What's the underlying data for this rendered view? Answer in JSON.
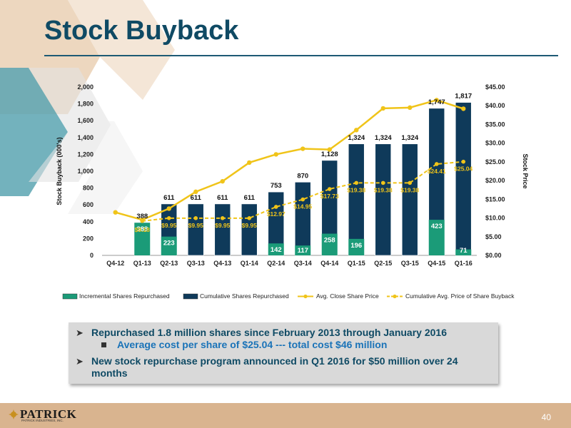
{
  "slide": {
    "title": "Stock Buyback",
    "page_number": "40"
  },
  "bullets": {
    "b1": "Repurchased 1.8 million shares since February 2013 through January 2016",
    "b1_sub": "Average cost per share of $25.04 --- total cost $46 million",
    "b2": "New stock repurchase program announced in Q1 2016 for $50 million over 24 months"
  },
  "footer": {
    "logo_text": "PATRICK",
    "logo_tagline": "PATRICK INDUSTRIES, INC."
  },
  "colors": {
    "title": "#0f4a64",
    "incremental_bar": "#1b9b78",
    "cumulative_bar": "#0f3a5a",
    "price_line": "#f0c419",
    "footer": "#d9b48f"
  },
  "chart_data": {
    "type": "bar",
    "categories": [
      "Q4-12",
      "Q1-13",
      "Q2-13",
      "Q3-13",
      "Q4-13",
      "Q1-14",
      "Q2-14",
      "Q3-14",
      "Q4-14",
      "Q1-15",
      "Q2-15",
      "Q3-15",
      "Q4-15",
      "Q1-16"
    ],
    "series": [
      {
        "name": "Incremental Shares Repurchased",
        "axis": "left",
        "values": [
          null,
          388,
          223,
          null,
          null,
          null,
          142,
          117,
          258,
          196,
          null,
          null,
          423,
          71
        ],
        "labels": [
          "",
          "388",
          "223",
          "",
          "",
          "",
          "142",
          "117",
          "258",
          "196",
          "",
          "",
          "423",
          "71"
        ]
      },
      {
        "name": "Cumulative Shares Repurchased",
        "axis": "left",
        "values": [
          null,
          388,
          611,
          611,
          611,
          611,
          753,
          870,
          1128,
          1324,
          1324,
          1324,
          1747,
          1817
        ],
        "labels": [
          "",
          "388",
          "611",
          "611",
          "611",
          "611",
          "753",
          "870",
          "1,128",
          "1,324",
          "1,324",
          "1,324",
          "1,747",
          "1,817"
        ]
      },
      {
        "name": "Avg. Close Share Price",
        "axis": "right",
        "type": "line",
        "values": [
          11.5,
          9.5,
          12.5,
          17.0,
          19.8,
          24.8,
          27.0,
          28.5,
          28.3,
          33.5,
          39.3,
          39.5,
          41.5,
          39.2
        ]
      },
      {
        "name": "Cumulative Avg. Price of Share Buyback",
        "axis": "right",
        "type": "line",
        "dashed": true,
        "values": [
          null,
          9.18,
          9.95,
          9.95,
          9.95,
          9.95,
          12.97,
          14.95,
          17.73,
          19.38,
          19.38,
          19.38,
          24.41,
          25.04
        ],
        "labels": [
          "",
          "$9.18",
          "$9.95",
          "$9.95",
          "$9.95",
          "$9.95",
          "$12.97",
          "$14.95",
          "$17.73",
          "$19.38",
          "$19.38",
          "$19.38",
          "$24.41",
          "$25.04"
        ]
      }
    ],
    "ylabel": "Stock Buyback (000's)",
    "y2label": "Stock Price",
    "ylim": [
      0,
      2000
    ],
    "y2lim": [
      0,
      45
    ],
    "yticks": [
      "0",
      "200",
      "400",
      "600",
      "800",
      "1,000",
      "1,200",
      "1,400",
      "1,600",
      "1,800",
      "2,000"
    ],
    "y2ticks": [
      "$0.00",
      "$5.00",
      "$10.00",
      "$15.00",
      "$20.00",
      "$25.00",
      "$30.00",
      "$35.00",
      "$40.00",
      "$45.00"
    ],
    "legend_position": "bottom",
    "grid": false
  }
}
